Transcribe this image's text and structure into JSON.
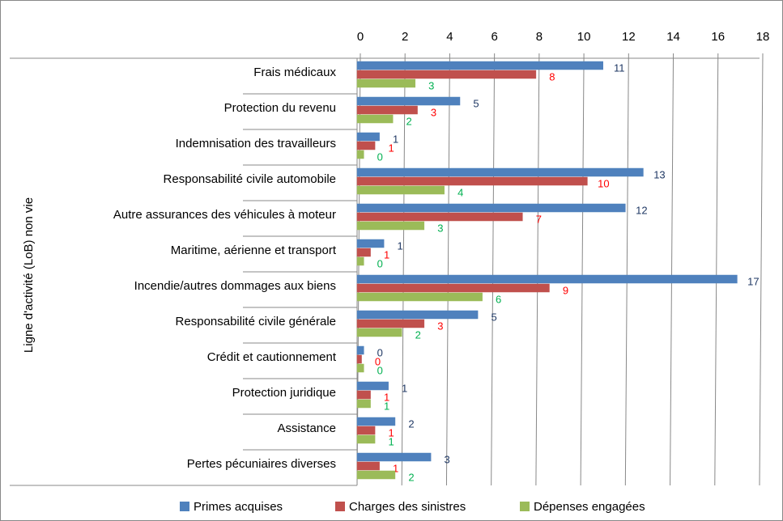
{
  "chart_data": {
    "type": "bar",
    "orientation": "horizontal",
    "y_axis_label": "Ligne d'activité (LoB) non vie",
    "categories": [
      "Frais médicaux",
      "Protection du revenu",
      "Indemnisation des travailleurs",
      "Responsabilité civile automobile",
      "Autre assurances des véhicules à moteur",
      "Maritime, aérienne et transport",
      "Incendie/autres dommages aux biens",
      "Responsabilité civile générale",
      "Crédit et cautionnement",
      "Protection juridique",
      "Assistance",
      "Pertes pécuniaires diverses"
    ],
    "series": [
      {
        "name": "Primes acquises",
        "color": "#4f81bd",
        "label_color": "#1f3864",
        "values": [
          11.0,
          4.6,
          1.0,
          12.8,
          12.0,
          1.2,
          17.0,
          5.4,
          0.3,
          1.4,
          1.7,
          3.3
        ],
        "value_labels": [
          "11",
          "5",
          "1",
          "13",
          "12",
          "1",
          "17",
          "5",
          "0",
          "1",
          "2",
          "3"
        ]
      },
      {
        "name": "Charges des sinistres",
        "color": "#c0504d",
        "label_color": "#ff0000",
        "values": [
          8.0,
          2.7,
          0.8,
          10.3,
          7.4,
          0.6,
          8.6,
          3.0,
          0.2,
          0.6,
          0.8,
          1.0
        ],
        "value_labels": [
          "8",
          "3",
          "1",
          "10",
          "7",
          "1",
          "9",
          "3",
          "0",
          "1",
          "1",
          "1"
        ]
      },
      {
        "name": "Dépenses engagées",
        "color": "#9bbb59",
        "label_color": "#00b050",
        "values": [
          2.6,
          1.6,
          0.3,
          3.9,
          3.0,
          0.3,
          5.6,
          2.0,
          0.3,
          0.6,
          0.8,
          1.7
        ],
        "value_labels": [
          "3",
          "2",
          "0",
          "4",
          "3",
          "0",
          "6",
          "2",
          "0",
          "1",
          "1",
          "2"
        ]
      }
    ],
    "xlim": [
      0,
      18
    ],
    "xticks": [
      0,
      2,
      4,
      6,
      8,
      10,
      12,
      14,
      16,
      18
    ],
    "grid": true,
    "legend": "bottom"
  }
}
